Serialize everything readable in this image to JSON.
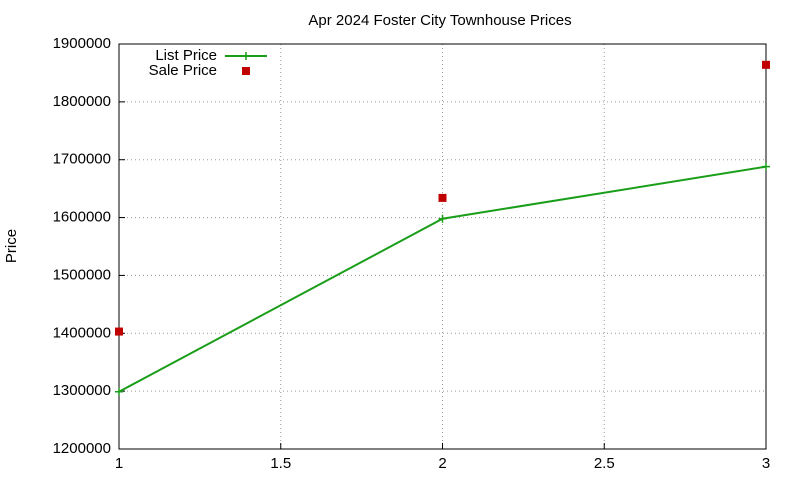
{
  "chart_data": {
    "type": "line",
    "title": "Apr 2024 Foster City Townhouse Prices",
    "y_label": "Price",
    "x": [
      1,
      2,
      3
    ],
    "series": [
      {
        "name": "List Price",
        "color": "#1a9e1a",
        "mode": "linespoints",
        "marker": "plus",
        "values": [
          1299000,
          1598000,
          1688000
        ]
      },
      {
        "name": "Sale Price",
        "color": "#c00000",
        "mode": "points",
        "marker": "square",
        "values": [
          1403000,
          1634000,
          1864000
        ]
      }
    ],
    "xlim": [
      1,
      3
    ],
    "xticks": [
      1,
      1.5,
      2,
      2.5,
      3
    ],
    "ylim": [
      1200000,
      1900000
    ],
    "yticks": [
      1200000,
      1300000,
      1400000,
      1500000,
      1600000,
      1700000,
      1800000,
      1900000
    ],
    "grid": true,
    "legend": "top-left"
  }
}
